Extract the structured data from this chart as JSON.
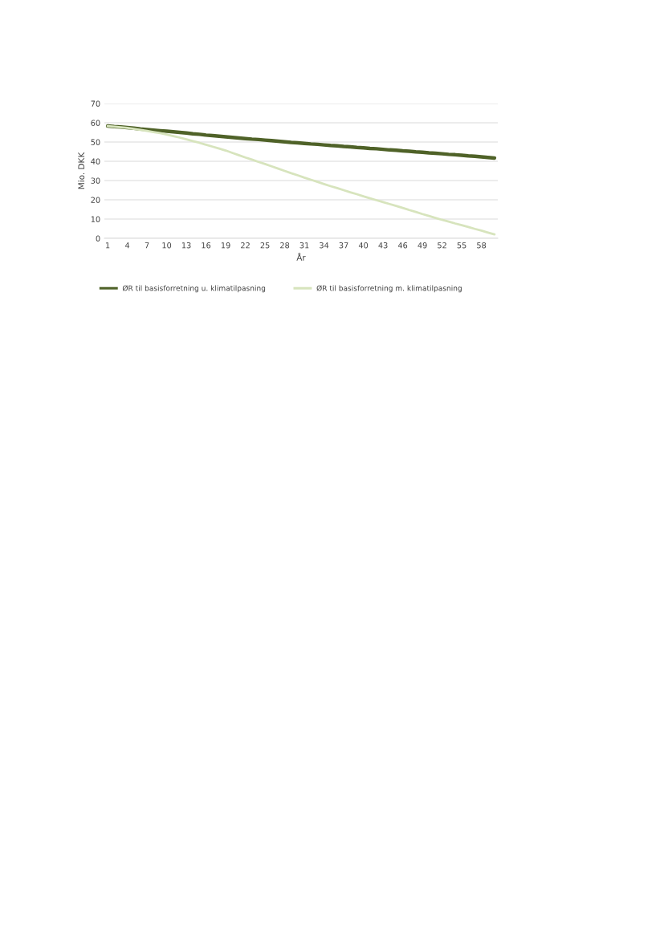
{
  "chart_data": {
    "type": "line",
    "xlabel": "År",
    "ylabel": "Mio. DKK",
    "categories": [
      "1",
      null,
      null,
      "4",
      null,
      null,
      "7",
      null,
      null,
      "10",
      null,
      null,
      "13",
      null,
      null,
      "16",
      null,
      null,
      "19",
      null,
      null,
      "22",
      null,
      null,
      "25",
      null,
      null,
      "28",
      null,
      null,
      "31",
      null,
      null,
      "34",
      null,
      null,
      "37",
      null,
      null,
      "40",
      null,
      null,
      "43",
      null,
      null,
      "46",
      null,
      null,
      "49",
      null,
      null,
      "52",
      null,
      null,
      "55",
      null,
      null,
      "58",
      null,
      null
    ],
    "series": [
      {
        "name": "ØR til basisforretning u. klimatilpasning",
        "color": "#4f6228",
        "values": [
          58.3,
          58.0,
          57.8,
          57.5,
          57.2,
          56.8,
          56.5,
          56.2,
          55.9,
          55.6,
          55.3,
          55.0,
          54.7,
          54.3,
          54.0,
          53.6,
          53.3,
          53.0,
          52.7,
          52.4,
          52.1,
          51.8,
          51.5,
          51.3,
          51.0,
          50.7,
          50.4,
          50.1,
          49.8,
          49.6,
          49.3,
          49.0,
          48.8,
          48.5,
          48.2,
          48.0,
          47.7,
          47.5,
          47.2,
          47.0,
          46.7,
          46.5,
          46.2,
          45.9,
          45.7,
          45.4,
          45.2,
          44.9,
          44.7,
          44.4,
          44.2,
          43.9,
          43.6,
          43.4,
          43.1,
          42.8,
          42.6,
          42.3,
          42.0,
          41.7
        ]
      },
      {
        "name": "ØR til basisforretning m. klimatilpasning",
        "color": "#d7e4bd",
        "values": [
          58.3,
          58.0,
          57.7,
          57.3,
          56.8,
          56.3,
          55.8,
          55.2,
          54.6,
          53.9,
          53.1,
          52.3,
          51.4,
          50.5,
          49.6,
          48.6,
          47.6,
          46.6,
          45.6,
          44.4,
          43.2,
          42.0,
          40.9,
          39.7,
          38.6,
          37.4,
          36.2,
          35.0,
          33.8,
          32.7,
          31.5,
          30.4,
          29.3,
          28.2,
          27.1,
          26.1,
          25.0,
          23.9,
          22.9,
          21.8,
          20.8,
          19.8,
          18.8,
          17.8,
          16.8,
          15.8,
          14.7,
          13.7,
          12.6,
          11.6,
          10.6,
          9.6,
          8.7,
          7.7,
          6.8,
          5.9,
          4.9,
          4.0,
          3.0,
          2.0
        ]
      }
    ],
    "ylim": [
      0,
      70
    ],
    "yticks": [
      0,
      10,
      20,
      30,
      40,
      50,
      60,
      70
    ],
    "grid": "y",
    "legend": "bottom",
    "marker": "none",
    "line_style": "solid"
  }
}
